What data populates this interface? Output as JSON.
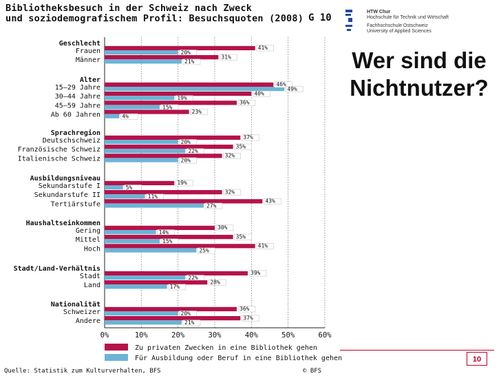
{
  "chart_data": {
    "type": "bar",
    "orientation": "horizontal",
    "title_line1": "Bibliotheksbesuch in der Schweiz nach Zweck",
    "title_line2": "und soziodemografischem Profil: Besuchsquoten (2008)",
    "figure_label": "G 10",
    "xlim": [
      0,
      60
    ],
    "x_ticks": [
      "0%",
      "10%",
      "20%",
      "30%",
      "40%",
      "50%",
      "60%"
    ],
    "groups": [
      {
        "heading": "Geschlecht",
        "categories": [
          "Frauen",
          "Männer"
        ],
        "red": [
          41,
          31
        ],
        "blue": [
          20,
          21
        ]
      },
      {
        "heading": "Alter",
        "categories": [
          "15–29 Jahre",
          "30–44 Jahre",
          "45–59 Jahre",
          "Ab 60 Jahren"
        ],
        "red": [
          46,
          40,
          36,
          23
        ],
        "blue": [
          49,
          19,
          15,
          4
        ]
      },
      {
        "heading": "Sprachregion",
        "categories": [
          "Deutschschweiz",
          "Französische Schweiz",
          "Italienische Schweiz"
        ],
        "red": [
          37,
          35,
          32
        ],
        "blue": [
          20,
          22,
          20
        ]
      },
      {
        "heading": "Ausbildungsniveau",
        "categories": [
          "Sekundarstufe I",
          "Sekundarstufe II",
          "Tertiärstufe"
        ],
        "red": [
          19,
          32,
          43
        ],
        "blue": [
          5,
          11,
          27
        ]
      },
      {
        "heading": "Haushaltseinkommen",
        "categories": [
          "Gering",
          "Mittel",
          "Hoch"
        ],
        "red": [
          30,
          35,
          41
        ],
        "blue": [
          14,
          15,
          25
        ]
      },
      {
        "heading": "Stadt/Land-Verhältnis",
        "categories": [
          "Stadt",
          "Land"
        ],
        "red": [
          39,
          28
        ],
        "blue": [
          22,
          17
        ]
      },
      {
        "heading": "Nationalität",
        "categories": [
          "Schweizer",
          "Andere"
        ],
        "red": [
          36,
          37
        ],
        "blue": [
          20,
          21
        ]
      }
    ],
    "series": [
      {
        "name": "Zu privaten Zwecken in eine Bibliothek gehen",
        "color": "#b5134a"
      },
      {
        "name": "Für Ausbildung oder Beruf in eine Bibliothek gehen",
        "color": "#6cb4d6"
      }
    ],
    "source": "Quelle: Statistik zum Kulturverhalten, BFS",
    "copyright": "© BFS"
  },
  "logo": {
    "line1": "HTW Chur",
    "line2": "Hochschule für Technik und Wirtschaft",
    "line3": "Fachhochschule Ostschweiz",
    "line4": "University of Applied Sciences"
  },
  "slide": {
    "title": "Wer sind die Nichtnutzer?",
    "page_number": "10"
  }
}
